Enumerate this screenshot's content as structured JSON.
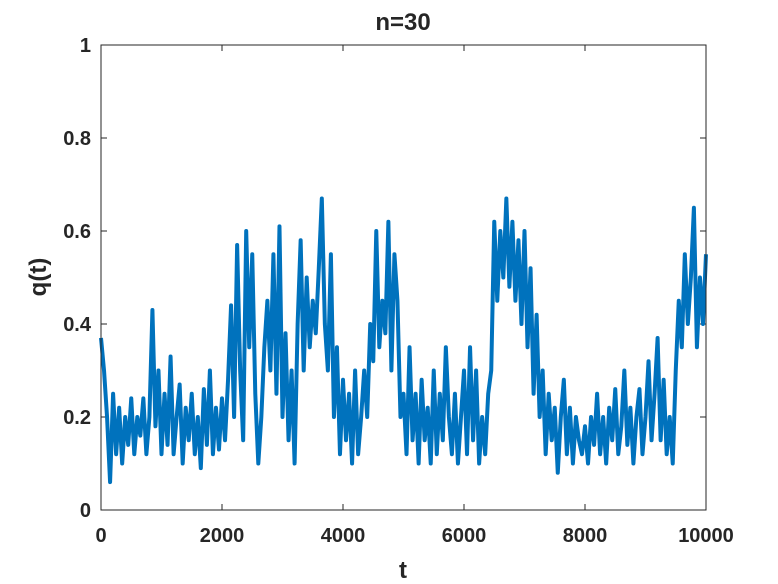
{
  "chart_data": {
    "type": "line",
    "title": "n=30",
    "x_label": "t",
    "y_label": "q(t)",
    "xlim": [
      0,
      10000
    ],
    "ylim": [
      0,
      1
    ],
    "xticks": [
      0,
      2000,
      4000,
      6000,
      8000,
      10000
    ],
    "yticks": [
      0,
      0.2,
      0.4,
      0.6,
      0.8,
      1
    ],
    "grid": false,
    "x": [
      0,
      50,
      100,
      150,
      200,
      250,
      300,
      350,
      400,
      450,
      500,
      550,
      600,
      650,
      700,
      750,
      800,
      850,
      900,
      950,
      1000,
      1050,
      1100,
      1150,
      1200,
      1250,
      1300,
      1350,
      1400,
      1450,
      1500,
      1550,
      1600,
      1650,
      1700,
      1750,
      1800,
      1850,
      1900,
      1950,
      2000,
      2050,
      2100,
      2150,
      2200,
      2250,
      2300,
      2350,
      2400,
      2450,
      2500,
      2550,
      2600,
      2650,
      2700,
      2750,
      2800,
      2850,
      2900,
      2950,
      3000,
      3050,
      3100,
      3150,
      3200,
      3250,
      3300,
      3350,
      3400,
      3450,
      3500,
      3550,
      3600,
      3650,
      3700,
      3750,
      3800,
      3850,
      3900,
      3950,
      4000,
      4050,
      4100,
      4150,
      4200,
      4250,
      4300,
      4350,
      4400,
      4450,
      4500,
      4550,
      4600,
      4650,
      4700,
      4750,
      4800,
      4850,
      4900,
      4950,
      5000,
      5050,
      5100,
      5150,
      5200,
      5250,
      5300,
      5350,
      5400,
      5450,
      5500,
      5550,
      5600,
      5650,
      5700,
      5750,
      5800,
      5850,
      5900,
      5950,
      6000,
      6050,
      6100,
      6150,
      6200,
      6250,
      6300,
      6350,
      6400,
      6450,
      6500,
      6550,
      6600,
      6650,
      6700,
      6750,
      6800,
      6850,
      6900,
      6950,
      7000,
      7050,
      7100,
      7150,
      7200,
      7250,
      7300,
      7350,
      7400,
      7450,
      7500,
      7550,
      7600,
      7650,
      7700,
      7750,
      7800,
      7850,
      7900,
      7950,
      8000,
      8050,
      8100,
      8150,
      8200,
      8250,
      8300,
      8350,
      8400,
      8450,
      8500,
      8550,
      8600,
      8650,
      8700,
      8750,
      8800,
      8850,
      8900,
      8950,
      9000,
      9050,
      9100,
      9150,
      9200,
      9250,
      9300,
      9350,
      9400,
      9450,
      9500,
      9550,
      9600,
      9650,
      9700,
      9750,
      9800,
      9850,
      9900,
      9950,
      10000
    ],
    "series": [
      {
        "color": "#0072bd",
        "values": [
          0.37,
          0.3,
          0.2,
          0.06,
          0.25,
          0.12,
          0.22,
          0.1,
          0.2,
          0.14,
          0.24,
          0.12,
          0.2,
          0.16,
          0.24,
          0.12,
          0.2,
          0.43,
          0.18,
          0.3,
          0.12,
          0.25,
          0.14,
          0.33,
          0.12,
          0.2,
          0.27,
          0.1,
          0.22,
          0.15,
          0.25,
          0.12,
          0.2,
          0.09,
          0.26,
          0.14,
          0.3,
          0.12,
          0.22,
          0.13,
          0.24,
          0.15,
          0.28,
          0.44,
          0.2,
          0.57,
          0.3,
          0.15,
          0.6,
          0.35,
          0.55,
          0.25,
          0.1,
          0.2,
          0.35,
          0.45,
          0.3,
          0.55,
          0.25,
          0.61,
          0.2,
          0.38,
          0.15,
          0.3,
          0.1,
          0.4,
          0.58,
          0.3,
          0.5,
          0.35,
          0.45,
          0.38,
          0.52,
          0.67,
          0.4,
          0.3,
          0.55,
          0.2,
          0.35,
          0.12,
          0.28,
          0.15,
          0.25,
          0.1,
          0.3,
          0.12,
          0.2,
          0.3,
          0.2,
          0.4,
          0.32,
          0.6,
          0.35,
          0.45,
          0.38,
          0.62,
          0.3,
          0.55,
          0.45,
          0.2,
          0.25,
          0.12,
          0.35,
          0.15,
          0.25,
          0.1,
          0.28,
          0.15,
          0.22,
          0.1,
          0.3,
          0.12,
          0.25,
          0.15,
          0.35,
          0.2,
          0.12,
          0.25,
          0.1,
          0.2,
          0.3,
          0.12,
          0.35,
          0.15,
          0.3,
          0.1,
          0.2,
          0.12,
          0.25,
          0.3,
          0.62,
          0.45,
          0.6,
          0.5,
          0.67,
          0.48,
          0.62,
          0.45,
          0.58,
          0.4,
          0.6,
          0.35,
          0.52,
          0.25,
          0.42,
          0.2,
          0.3,
          0.12,
          0.25,
          0.15,
          0.22,
          0.08,
          0.2,
          0.28,
          0.12,
          0.22,
          0.1,
          0.2,
          0.15,
          0.12,
          0.18,
          0.1,
          0.2,
          0.14,
          0.25,
          0.12,
          0.2,
          0.1,
          0.22,
          0.15,
          0.26,
          0.12,
          0.18,
          0.3,
          0.14,
          0.22,
          0.1,
          0.2,
          0.26,
          0.12,
          0.2,
          0.32,
          0.15,
          0.25,
          0.37,
          0.15,
          0.28,
          0.12,
          0.2,
          0.1,
          0.3,
          0.45,
          0.35,
          0.55,
          0.4,
          0.5,
          0.65,
          0.35,
          0.5,
          0.4,
          0.55
        ]
      }
    ]
  }
}
